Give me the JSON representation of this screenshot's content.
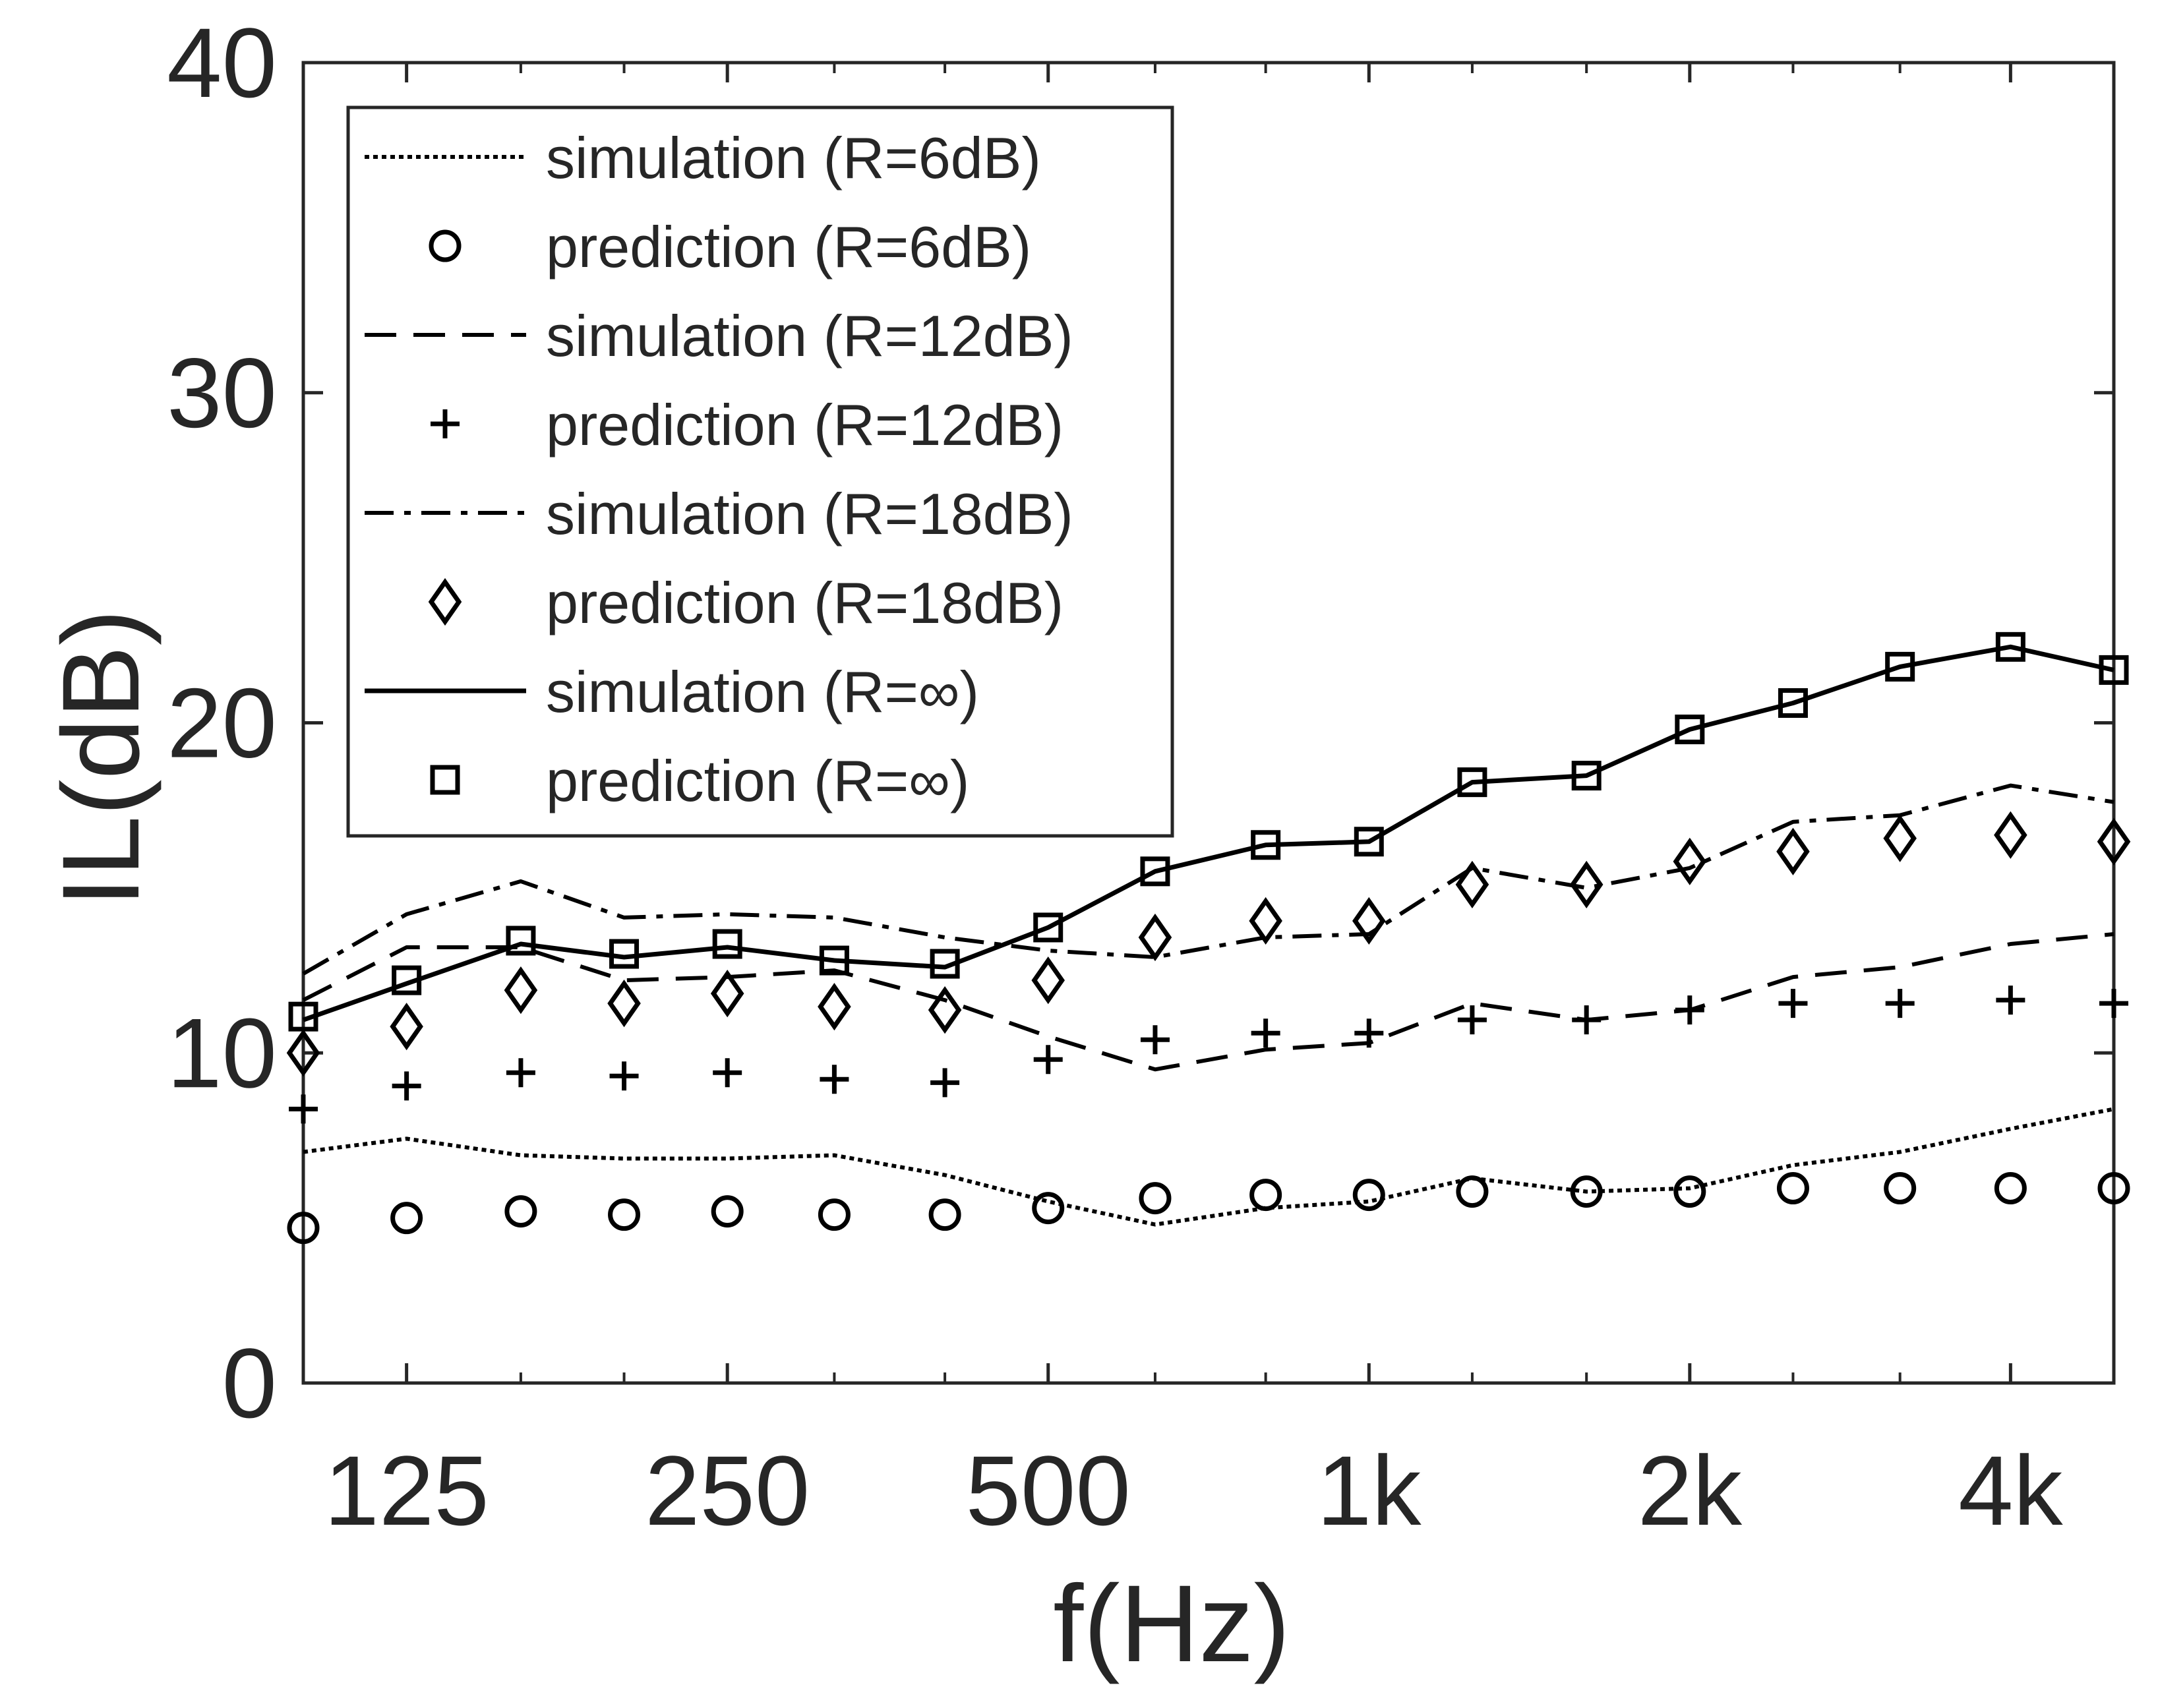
{
  "chart_data": {
    "type": "line",
    "title": "",
    "xlabel": "f(Hz)",
    "ylabel": "IL(dB)",
    "x_scale": "log",
    "xlim": [
      100,
      5000
    ],
    "ylim": [
      0,
      40
    ],
    "grid": false,
    "legend_position": "top-left",
    "x": [
      100,
      125,
      160,
      200,
      250,
      315,
      400,
      500,
      630,
      800,
      1000,
      1250,
      1600,
      2000,
      2500,
      3150,
      4000,
      5000
    ],
    "x_ticks": [
      125,
      250,
      500,
      1000,
      2000,
      4000
    ],
    "x_tick_labels": [
      "125",
      "250",
      "500",
      "1k",
      "2k",
      "4k"
    ],
    "y_ticks": [
      0,
      10,
      20,
      30,
      40
    ],
    "y_tick_labels": [
      "0",
      "10",
      "20",
      "30",
      "40"
    ],
    "series": [
      {
        "name": "simulation (R=6dB)",
        "kind": "line",
        "style": "dotted",
        "values": [
          7.0,
          7.4,
          6.9,
          6.8,
          6.8,
          6.9,
          6.3,
          5.5,
          4.8,
          5.3,
          5.5,
          6.2,
          5.8,
          5.9,
          6.6,
          7.0,
          7.7,
          8.3
        ]
      },
      {
        "name": "prediction (R=6dB)",
        "kind": "marker",
        "marker": "circle",
        "values": [
          4.7,
          5.0,
          5.2,
          5.1,
          5.2,
          5.1,
          5.1,
          5.3,
          5.6,
          5.7,
          5.7,
          5.8,
          5.8,
          5.8,
          5.9,
          5.9,
          5.9,
          5.9
        ]
      },
      {
        "name": "simulation (R=12dB)",
        "kind": "line",
        "style": "dashed",
        "values": [
          11.6,
          13.2,
          13.2,
          12.2,
          12.3,
          12.5,
          11.6,
          10.5,
          9.5,
          10.1,
          10.3,
          11.5,
          11.0,
          11.3,
          12.3,
          12.6,
          13.3,
          13.6
        ]
      },
      {
        "name": "prediction (R=12dB)",
        "kind": "marker",
        "marker": "plus",
        "values": [
          8.3,
          9.0,
          9.4,
          9.3,
          9.4,
          9.2,
          9.1,
          9.8,
          10.4,
          10.6,
          10.6,
          11.0,
          11.0,
          11.3,
          11.5,
          11.5,
          11.6,
          11.5
        ]
      },
      {
        "name": "simulation (R=18dB)",
        "kind": "line",
        "style": "dashdot",
        "values": [
          12.4,
          14.2,
          15.2,
          14.1,
          14.2,
          14.1,
          13.5,
          13.1,
          12.9,
          13.5,
          13.6,
          15.6,
          15.0,
          15.6,
          17.0,
          17.2,
          18.1,
          17.6
        ]
      },
      {
        "name": "prediction (R=18dB)",
        "kind": "marker",
        "marker": "diamond",
        "values": [
          10.0,
          10.8,
          11.9,
          11.5,
          11.8,
          11.4,
          11.3,
          12.2,
          13.5,
          14.0,
          14.0,
          15.1,
          15.1,
          15.8,
          16.1,
          16.5,
          16.6,
          16.4
        ]
      },
      {
        "name": "simulation (R=∞)",
        "kind": "line",
        "style": "solid",
        "values": [
          11.0,
          12.1,
          13.3,
          12.9,
          13.2,
          12.8,
          12.6,
          13.8,
          15.5,
          16.3,
          16.4,
          18.2,
          18.4,
          19.8,
          20.6,
          21.7,
          22.3,
          21.6
        ]
      },
      {
        "name": "prediction (R=∞)",
        "kind": "marker",
        "marker": "square",
        "values": [
          11.1,
          12.2,
          13.4,
          13.0,
          13.3,
          12.8,
          12.7,
          13.8,
          15.5,
          16.3,
          16.4,
          18.2,
          18.4,
          19.8,
          20.6,
          21.7,
          22.3,
          21.6
        ]
      }
    ]
  }
}
